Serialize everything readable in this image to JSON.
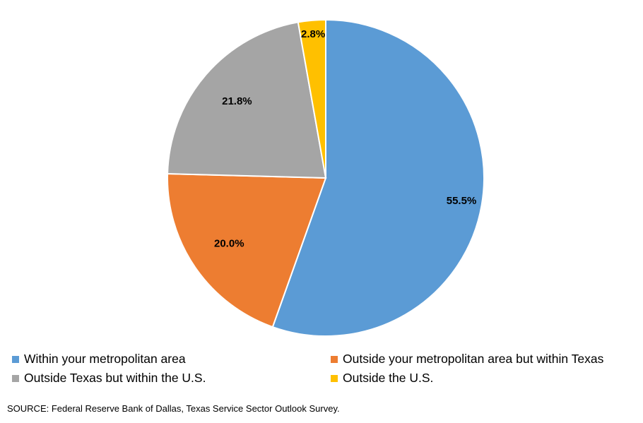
{
  "chart_data": {
    "type": "pie",
    "categories": [
      "Within your metropolitan area",
      "Outside your metropolitan area but within Texas",
      "Outside Texas but within the U.S.",
      "Outside the U.S."
    ],
    "values": [
      55.5,
      20.0,
      21.8,
      2.8
    ],
    "data_labels": [
      "55.5%",
      "20.0%",
      "21.8%",
      "2.8%"
    ],
    "colors": [
      "#5B9BD5",
      "#ED7D31",
      "#A5A5A5",
      "#FFC000"
    ],
    "start_angle_deg": 0,
    "direction": "clockwise",
    "legend_position": "bottom"
  },
  "source": "SOURCE: Federal Reserve Bank of Dallas, Texas Service Sector Outlook Survey."
}
